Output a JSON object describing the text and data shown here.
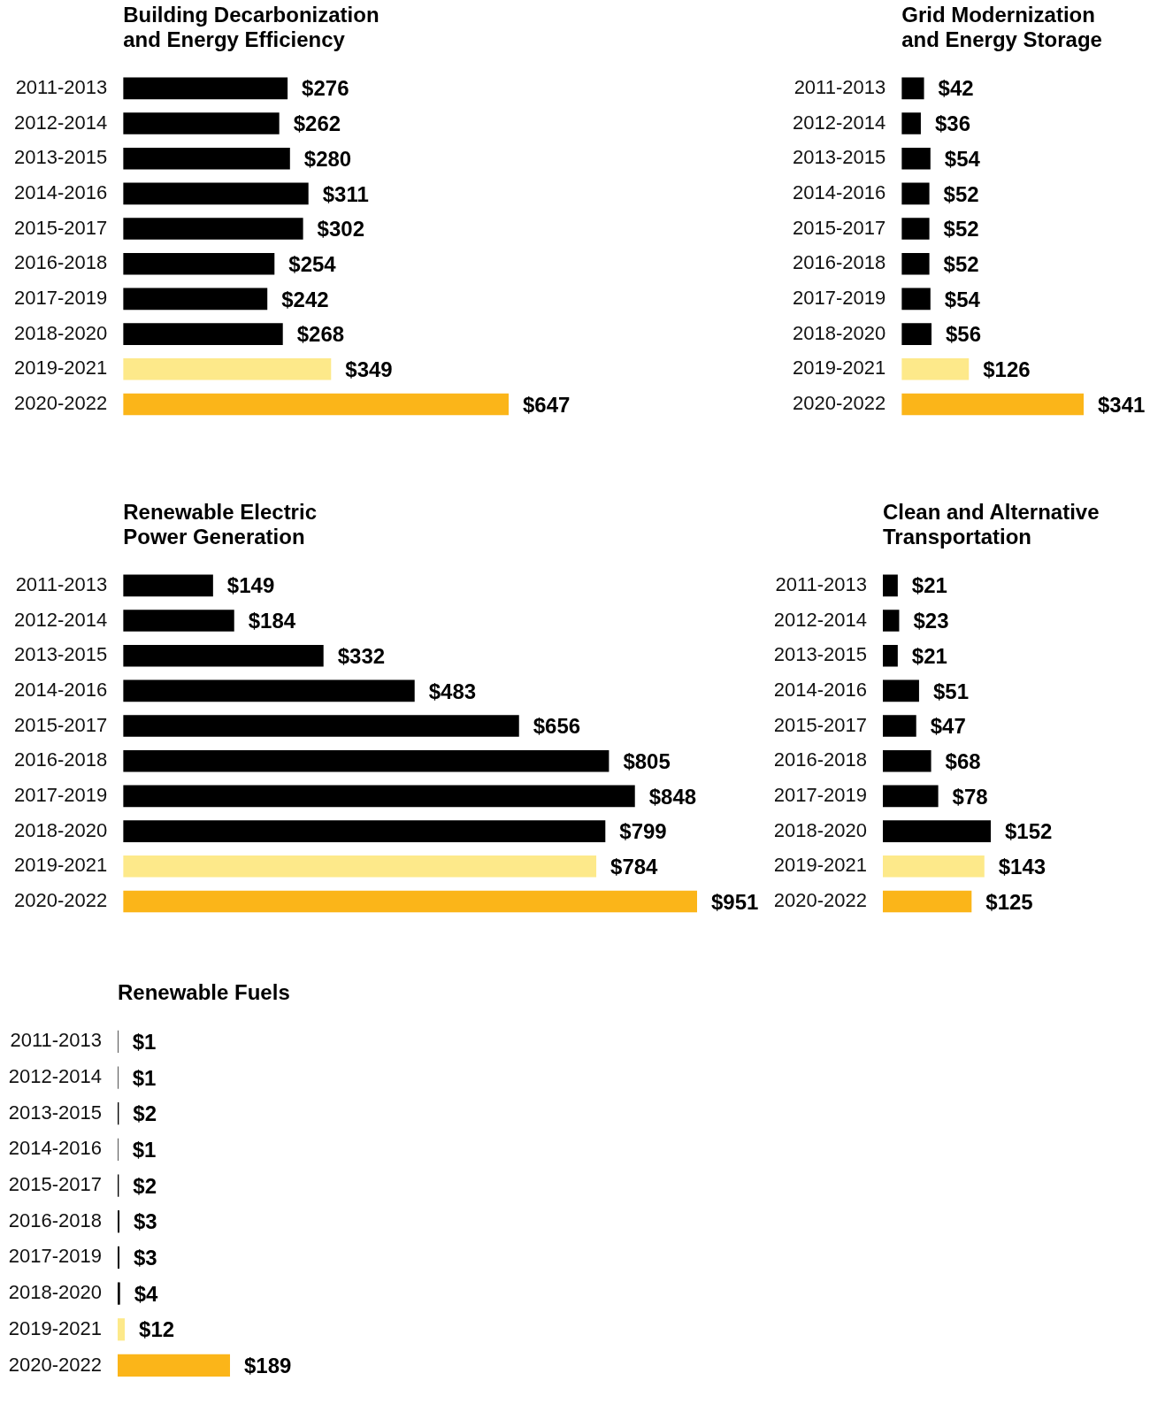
{
  "chart_data": [
    {
      "type": "bar",
      "orientation": "horizontal",
      "tick_labels": "y",
      "title": "Building Decarbonization\nand Energy Efficiency",
      "categories": [
        "2011-2013",
        "2012-2014",
        "2013-2015",
        "2014-2016",
        "2015-2017",
        "2016-2018",
        "2017-2019",
        "2018-2020",
        "2019-2021",
        "2020-2022"
      ],
      "values": [
        276,
        262,
        280,
        311,
        302,
        254,
        242,
        268,
        349,
        647
      ],
      "value_labels": [
        "$276",
        "$262",
        "$280",
        "$311",
        "$302",
        "$254",
        "$242",
        "$268",
        "$349",
        "$647"
      ],
      "colors": [
        "#000000",
        "#000000",
        "#000000",
        "#000000",
        "#000000",
        "#000000",
        "#000000",
        "#000000",
        "#fde98a",
        "#fbb519"
      ]
    },
    {
      "type": "bar",
      "orientation": "horizontal",
      "tick_labels": "y",
      "title": "Grid Modernization\nand Energy Storage",
      "categories": [
        "2011-2013",
        "2012-2014",
        "2013-2015",
        "2014-2016",
        "2015-2017",
        "2016-2018",
        "2017-2019",
        "2018-2020",
        "2019-2021",
        "2020-2022"
      ],
      "values": [
        42,
        36,
        54,
        52,
        52,
        52,
        54,
        56,
        126,
        341
      ],
      "value_labels": [
        "$42",
        "$36",
        "$54",
        "$52",
        "$52",
        "$52",
        "$54",
        "$56",
        "$126",
        "$341"
      ],
      "colors": [
        "#000000",
        "#000000",
        "#000000",
        "#000000",
        "#000000",
        "#000000",
        "#000000",
        "#000000",
        "#fde98a",
        "#fbb519"
      ]
    },
    {
      "type": "bar",
      "orientation": "horizontal",
      "tick_labels": "y",
      "title": "Renewable Electric\nPower Generation",
      "categories": [
        "2011-2013",
        "2012-2014",
        "2013-2015",
        "2014-2016",
        "2015-2017",
        "2016-2018",
        "2017-2019",
        "2018-2020",
        "2019-2021",
        "2020-2022"
      ],
      "values": [
        149,
        184,
        332,
        483,
        656,
        805,
        848,
        799,
        784,
        951
      ],
      "value_labels": [
        "$149",
        "$184",
        "$332",
        "$483",
        "$656",
        "$805",
        "$848",
        "$799",
        "$784",
        "$951"
      ],
      "colors": [
        "#000000",
        "#000000",
        "#000000",
        "#000000",
        "#000000",
        "#000000",
        "#000000",
        "#000000",
        "#fde98a",
        "#fbb519"
      ]
    },
    {
      "type": "bar",
      "orientation": "horizontal",
      "tick_labels": "y",
      "title": "Clean and Alternative\nTransportation",
      "categories": [
        "2011-2013",
        "2012-2014",
        "2013-2015",
        "2014-2016",
        "2015-2017",
        "2016-2018",
        "2017-2019",
        "2018-2020",
        "2019-2021",
        "2020-2022"
      ],
      "values": [
        21,
        23,
        21,
        51,
        47,
        68,
        78,
        152,
        143,
        125
      ],
      "value_labels": [
        "$21",
        "$23",
        "$21",
        "$51",
        "$47",
        "$68",
        "$78",
        "$152",
        "$143",
        "$125"
      ],
      "colors": [
        "#000000",
        "#000000",
        "#000000",
        "#000000",
        "#000000",
        "#000000",
        "#000000",
        "#000000",
        "#fde98a",
        "#fbb519"
      ]
    },
    {
      "type": "bar",
      "orientation": "horizontal",
      "tick_labels": "y",
      "title": "Renewable Fuels",
      "categories": [
        "2011-2013",
        "2012-2014",
        "2013-2015",
        "2014-2016",
        "2015-2017",
        "2016-2018",
        "2017-2019",
        "2018-2020",
        "2019-2021",
        "2020-2022"
      ],
      "values": [
        1,
        1,
        2,
        1,
        2,
        3,
        3,
        4,
        12,
        189
      ],
      "value_labels": [
        "$1",
        "$1",
        "$2",
        "$1",
        "$2",
        "$3",
        "$3",
        "$4",
        "$12",
        "$189"
      ],
      "colors": [
        "#000000",
        "#000000",
        "#000000",
        "#000000",
        "#000000",
        "#000000",
        "#000000",
        "#000000",
        "#fde98a",
        "#fbb519"
      ]
    }
  ]
}
